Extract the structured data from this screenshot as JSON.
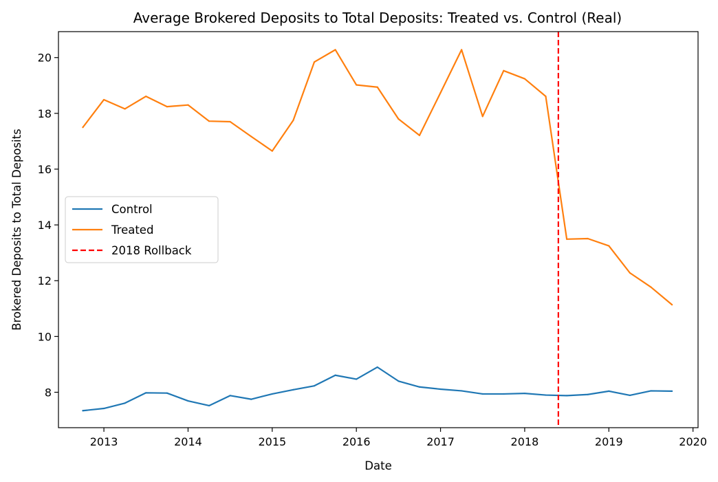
{
  "chart_data": {
    "type": "line",
    "title": "Average Brokered Deposits to Total Deposits: Treated vs. Control (Real)",
    "xlabel": "Date",
    "ylabel": "Brokered Deposits to Total Deposits",
    "xlim": [
      2012.46,
      2020.06
    ],
    "ylim": [
      6.73,
      20.93
    ],
    "x_ticks": [
      2013,
      2014,
      2015,
      2016,
      2017,
      2018,
      2019,
      2020
    ],
    "x_tick_labels": [
      "2013",
      "2014",
      "2015",
      "2016",
      "2017",
      "2018",
      "2019",
      "2020"
    ],
    "y_ticks": [
      8,
      10,
      12,
      14,
      16,
      18,
      20
    ],
    "y_tick_labels": [
      "8",
      "10",
      "12",
      "14",
      "16",
      "18",
      "20"
    ],
    "x": [
      2012.75,
      2013.0,
      2013.25,
      2013.5,
      2013.75,
      2014.0,
      2014.25,
      2014.5,
      2014.75,
      2015.0,
      2015.25,
      2015.5,
      2015.75,
      2016.0,
      2016.25,
      2016.5,
      2016.75,
      2017.0,
      2017.25,
      2017.5,
      2017.75,
      2018.0,
      2018.25,
      2018.5,
      2018.75,
      2019.0,
      2019.25,
      2019.5,
      2019.75
    ],
    "series": [
      {
        "name": "Control",
        "color": "#1f77b4",
        "style": "solid",
        "values": [
          7.34,
          7.42,
          7.61,
          7.98,
          7.97,
          7.69,
          7.52,
          7.88,
          7.75,
          7.94,
          8.09,
          8.23,
          8.61,
          8.47,
          8.9,
          8.4,
          8.19,
          8.11,
          8.05,
          7.94,
          7.94,
          7.96,
          7.9,
          7.88,
          7.92,
          8.04,
          7.89,
          8.05,
          8.04
        ]
      },
      {
        "name": "Treated",
        "color": "#ff7f0e",
        "style": "solid",
        "values": [
          17.5,
          18.49,
          18.16,
          18.61,
          18.24,
          18.3,
          17.72,
          17.7,
          17.17,
          16.65,
          17.75,
          19.84,
          20.28,
          19.02,
          18.94,
          17.8,
          17.21,
          18.74,
          20.28,
          17.89,
          19.53,
          19.24,
          18.61,
          13.49,
          13.51,
          13.25,
          12.28,
          11.77,
          11.14
        ]
      }
    ],
    "vlines": [
      {
        "name": "2018 Rollback",
        "x": 2018.4,
        "color": "#ff0000",
        "style": "dashed"
      }
    ],
    "legend": {
      "position": "center-left",
      "entries": [
        "Control",
        "Treated",
        "2018 Rollback"
      ]
    },
    "grid": false
  }
}
